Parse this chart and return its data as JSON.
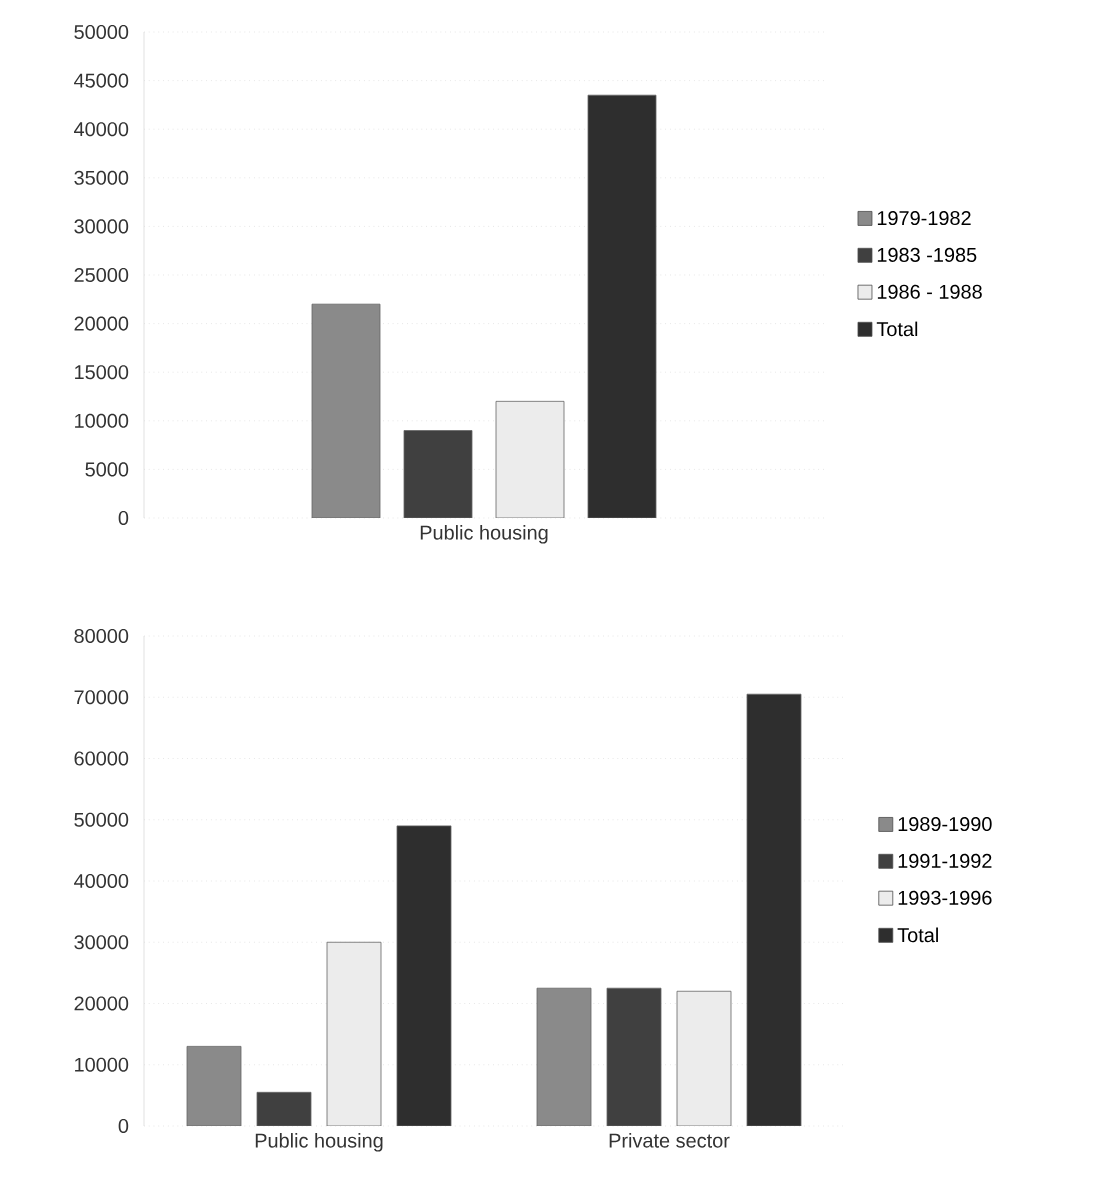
{
  "chart_data": [
    {
      "type": "bar",
      "categories": [
        "Public housing"
      ],
      "ylim": [
        0,
        50000
      ],
      "yticks": [
        0,
        5000,
        10000,
        15000,
        20000,
        25000,
        30000,
        35000,
        40000,
        45000,
        50000
      ],
      "grid": "y",
      "legend": "right",
      "series": [
        {
          "name": "1979-1982",
          "color": "#8a8a8a",
          "values": [
            22000
          ]
        },
        {
          "name": "1983 -1985",
          "color": "#404040",
          "values": [
            9000
          ]
        },
        {
          "name": "1986 - 1988",
          "color": "#ececec",
          "values": [
            12000
          ]
        },
        {
          "name": "Total",
          "color": "#2e2e2e",
          "values": [
            43500
          ]
        }
      ]
    },
    {
      "type": "bar",
      "categories": [
        "Public housing",
        "Private sector"
      ],
      "ylim": [
        0,
        80000
      ],
      "yticks": [
        0,
        10000,
        20000,
        30000,
        40000,
        50000,
        60000,
        70000,
        80000
      ],
      "grid": "y",
      "legend": "right",
      "series": [
        {
          "name": "1989-1990",
          "color": "#8a8a8a",
          "values": [
            13000,
            22500
          ]
        },
        {
          "name": "1991-1992",
          "color": "#404040",
          "values": [
            5500,
            22500
          ]
        },
        {
          "name": "1993-1996",
          "color": "#ececec",
          "values": [
            30000,
            22000
          ]
        },
        {
          "name": "Total",
          "color": "#2e2e2e",
          "values": [
            49000,
            70500
          ]
        }
      ]
    }
  ]
}
